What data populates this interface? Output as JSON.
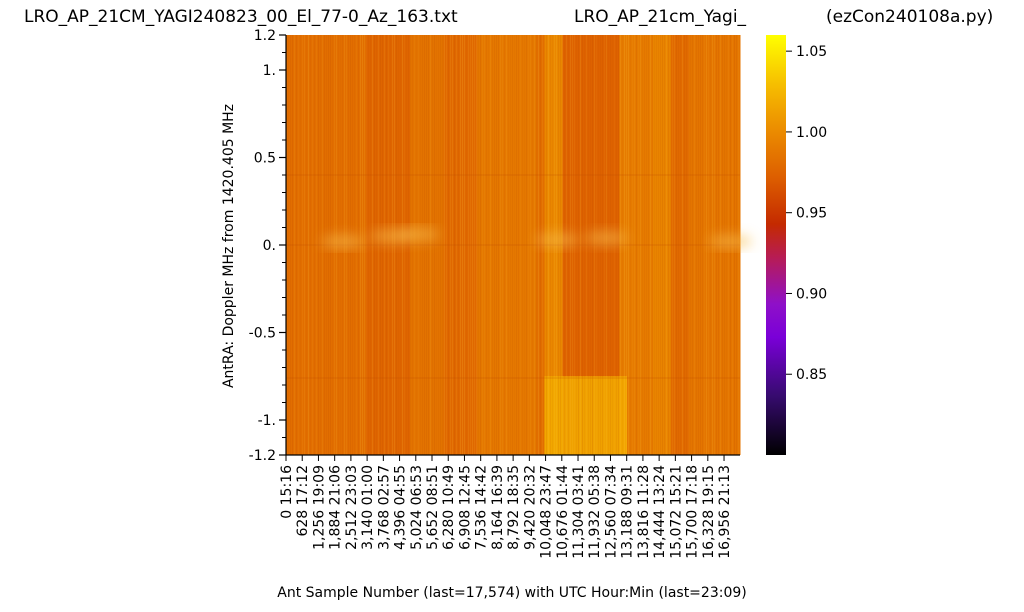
{
  "header": {
    "filename": "LRO_AP_21CM_YAGI240823_00_El_77-0_Az_163.txt",
    "station": "LRO_AP_21cm_Yagi_",
    "program": "(ezCon240108a.py)"
  },
  "chart_data": {
    "type": "heatmap",
    "xlabel": "Ant Sample Number (last=17,574) with UTC Hour:Min (last=23:09)",
    "ylabel": "AntRA:  Doppler MHz from 1420.405 MHz",
    "xlim": [
      0,
      17574
    ],
    "ylim": [
      -1.2,
      1.2
    ],
    "x_ticks": [
      {
        "sample": 0,
        "label": "0  15:16"
      },
      {
        "sample": 628,
        "label": "628  17:12"
      },
      {
        "sample": 1256,
        "label": "1,256  19:09"
      },
      {
        "sample": 1884,
        "label": "1,884  21:06"
      },
      {
        "sample": 2512,
        "label": "2,512  23:03"
      },
      {
        "sample": 3140,
        "label": "3,140  01:00"
      },
      {
        "sample": 3768,
        "label": "3,768  02:57"
      },
      {
        "sample": 4396,
        "label": "4,396  04:55"
      },
      {
        "sample": 5024,
        "label": "5,024  06:53"
      },
      {
        "sample": 5652,
        "label": "5,652  08:51"
      },
      {
        "sample": 6280,
        "label": "6,280  10:49"
      },
      {
        "sample": 6908,
        "label": "6,908  12:45"
      },
      {
        "sample": 7536,
        "label": "7,536  14:42"
      },
      {
        "sample": 8164,
        "label": "8,164  16:39"
      },
      {
        "sample": 8792,
        "label": "8,792  18:35"
      },
      {
        "sample": 9420,
        "label": "9,420  20:32"
      },
      {
        "sample": 10048,
        "label": "10,048  23:47"
      },
      {
        "sample": 10676,
        "label": "10,676  01:44"
      },
      {
        "sample": 11304,
        "label": "11,304  03:41"
      },
      {
        "sample": 11932,
        "label": "11,932  05:38"
      },
      {
        "sample": 12560,
        "label": "12,560  07:34"
      },
      {
        "sample": 13188,
        "label": "13,188  09:31"
      },
      {
        "sample": 13816,
        "label": "13,816  11:28"
      },
      {
        "sample": 14444,
        "label": "14,444  13:24"
      },
      {
        "sample": 15072,
        "label": "15,072  15:21"
      },
      {
        "sample": 15700,
        "label": "15,700  17:18"
      },
      {
        "sample": 16328,
        "label": "16,328  19:15"
      },
      {
        "sample": 16956,
        "label": "16,956  21:13"
      }
    ],
    "y_ticks": [
      {
        "value": 1.2,
        "label": "1.2"
      },
      {
        "value": 1.0,
        "label": "1."
      },
      {
        "value": 0.5,
        "label": "0.5"
      },
      {
        "value": 0.0,
        "label": "0."
      },
      {
        "value": -0.5,
        "label": "-0.5"
      },
      {
        "value": -1.0,
        "label": "-1."
      },
      {
        "value": -1.2,
        "label": "-1.2"
      }
    ],
    "colorbar": {
      "colormap": "gnuplot",
      "range": [
        0.8,
        1.06
      ],
      "ticks": [
        {
          "value": 1.05,
          "label": "1.05"
        },
        {
          "value": 1.0,
          "label": "1.00"
        },
        {
          "value": 0.95,
          "label": "0.95"
        },
        {
          "value": 0.9,
          "label": "0.90"
        },
        {
          "value": 0.85,
          "label": "0.85"
        }
      ]
    },
    "column_bands": [
      {
        "x0": 0,
        "x1": 3100,
        "level": 0.982
      },
      {
        "x0": 3100,
        "x1": 4800,
        "level": 0.976
      },
      {
        "x0": 4800,
        "x1": 6100,
        "level": 0.985
      },
      {
        "x0": 6100,
        "x1": 7400,
        "level": 0.978
      },
      {
        "x0": 7400,
        "x1": 9700,
        "level": 0.988
      },
      {
        "x0": 9700,
        "x1": 10000,
        "level": 0.982
      },
      {
        "x0": 10000,
        "x1": 10700,
        "level": 0.998
      },
      {
        "x0": 10700,
        "x1": 12900,
        "level": 0.974
      },
      {
        "x0": 12900,
        "x1": 14200,
        "level": 0.99
      },
      {
        "x0": 14200,
        "x1": 14900,
        "level": 0.996
      },
      {
        "x0": 14900,
        "x1": 15600,
        "level": 0.979
      },
      {
        "x0": 15600,
        "x1": 17574,
        "level": 0.986
      }
    ],
    "bright_patch": {
      "x0": 10000,
      "x1": 13200,
      "y0": -1.2,
      "y1": -0.75,
      "level": 1.02
    },
    "horizontal_lines": [
      0.4,
      -0.76,
      0.0
    ]
  }
}
